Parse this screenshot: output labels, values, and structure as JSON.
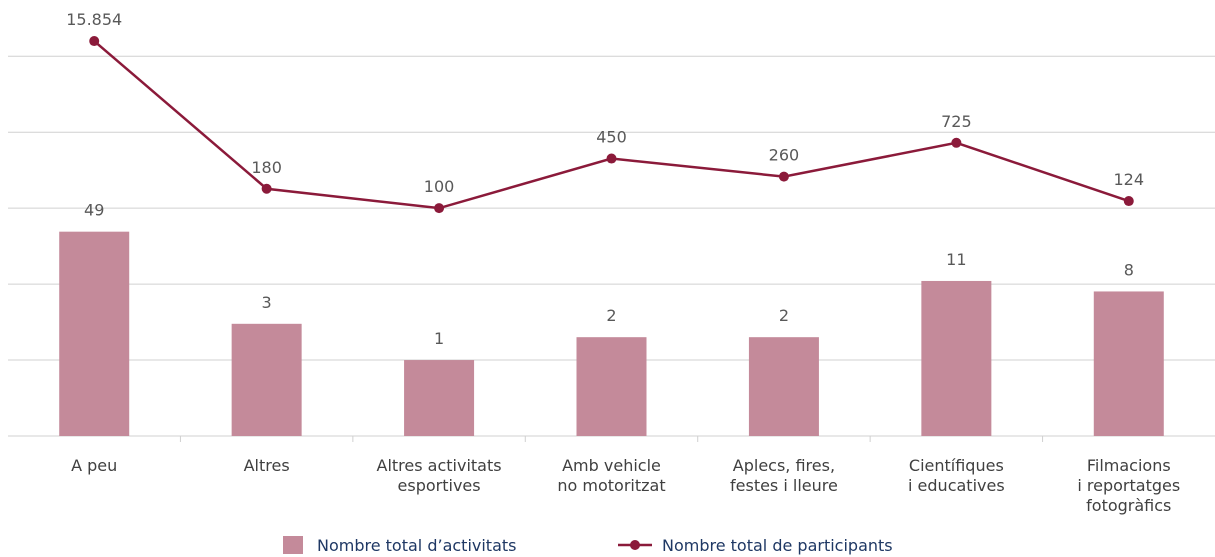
{
  "chart_data": {
    "type": "bar-line",
    "categories": [
      "A peu",
      "Altres",
      "Altres activitats\nesportives",
      "Amb vehicle\nno motoritzat",
      "Aplecs, fires,\nfestes i lleure",
      "Científiques\ni educatives",
      "Filmacions\ni reportatges\nfotogràfics"
    ],
    "series": [
      {
        "name": "Nombre total d’activitats",
        "type": "bar",
        "color": "#c48a9a",
        "values": [
          49,
          3,
          1,
          2,
          2,
          11,
          8
        ]
      },
      {
        "name": "Nombre total de participants",
        "type": "line",
        "color": "#8b1a3a",
        "values": [
          15854,
          180,
          100,
          450,
          260,
          725,
          124
        ],
        "value_labels": [
          "15.854",
          "180",
          "100",
          "450",
          "260",
          "725",
          "124"
        ]
      }
    ],
    "log_scale": true,
    "ylim": [
      0.1,
      30000
    ],
    "yticks": [
      0.1,
      1,
      10,
      100,
      1000,
      10000
    ],
    "grid": true
  }
}
